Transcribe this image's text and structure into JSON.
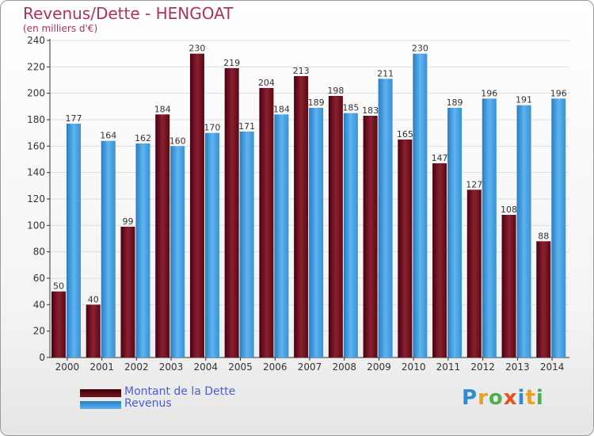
{
  "title": "Revenus/Dette - HENGOAT",
  "subtitle": "(en milliers d'€)",
  "logo_text": "Proxiti",
  "colors": {
    "debt": "#7a1420",
    "revenue": "#4fa6e6",
    "axis": "#333333",
    "grid": "#dddddd"
  },
  "chart_data": {
    "type": "bar",
    "title": "Revenus/Dette - HENGOAT",
    "subtitle": "(en milliers d'€)",
    "categories": [
      "2000",
      "2001",
      "2002",
      "2003",
      "2004",
      "2005",
      "2006",
      "2007",
      "2008",
      "2009",
      "2010",
      "2011",
      "2012",
      "2013",
      "2014"
    ],
    "series": [
      {
        "name": "Montant de la Dette",
        "values": [
          50,
          40,
          99,
          184,
          230,
          219,
          204,
          213,
          198,
          183,
          165,
          147,
          127,
          108,
          88
        ]
      },
      {
        "name": "Revenus",
        "values": [
          177,
          164,
          162,
          160,
          170,
          171,
          184,
          189,
          185,
          211,
          230,
          189,
          196,
          191,
          196
        ]
      }
    ],
    "ylim": [
      0,
      240
    ],
    "yticks": [
      0,
      20,
      40,
      60,
      80,
      100,
      120,
      140,
      160,
      180,
      200,
      220,
      240
    ],
    "grid": true,
    "legend_position": "bottom-left"
  }
}
